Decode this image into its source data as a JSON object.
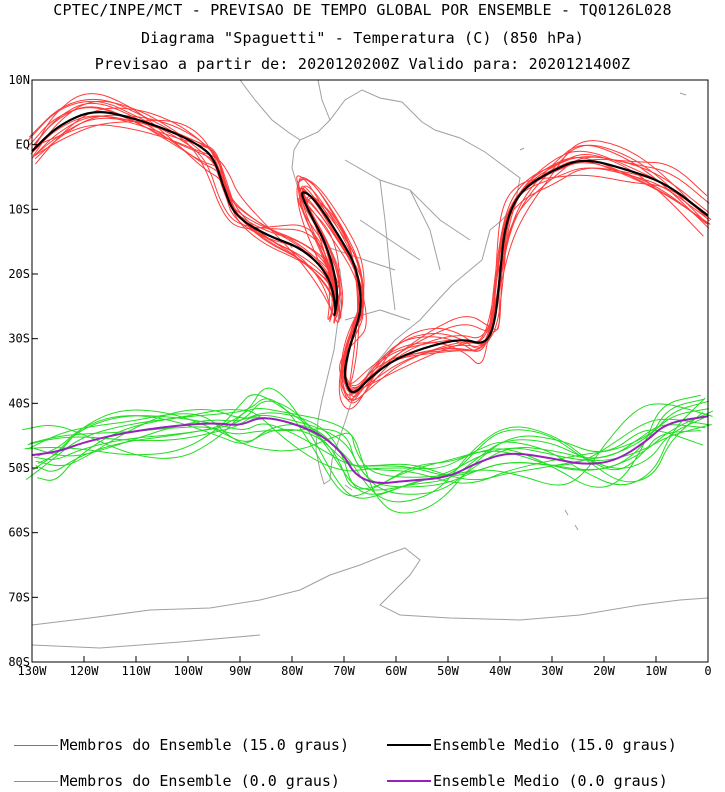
{
  "titles": {
    "line1": "CPTEC/INPE/MCT - PREVISAO DE TEMPO GLOBAL POR ENSEMBLE - TQ0126L028",
    "line2": "Diagrama \"Spaguetti\" - Temperatura (C) (850 hPa)",
    "line3": "Previsao a partir de: 2020120200Z  Valido para: 2020121400Z"
  },
  "axes": {
    "lat_labels": [
      "10N",
      "EQ",
      "10S",
      "20S",
      "30S",
      "40S",
      "50S",
      "60S",
      "70S",
      "80S"
    ],
    "lon_labels": [
      "130W",
      "120W",
      "110W",
      "100W",
      "90W",
      "80W",
      "70W",
      "60W",
      "50W",
      "40W",
      "30W",
      "20W",
      "10W",
      "0"
    ]
  },
  "legend": {
    "members_15_label": "Membros do Ensemble (15.0 graus)",
    "mean_15_label": "Ensemble Medio (15.0 graus)",
    "members_0_label": "Membros do Ensemble (0.0 graus)",
    "mean_0_label": "Ensemble Medio (0.0 graus)"
  },
  "colors": {
    "members_15": "#ff3b3b",
    "mean_15": "#000000",
    "members_0": "#22dd22",
    "mean_0": "#9a1fbf",
    "coast": "#a0a0a0"
  },
  "map_data": {
    "lon_range": [
      -130,
      0
    ],
    "lat_range": [
      -80,
      10
    ],
    "mean_15": [
      [
        -130,
        -1
      ],
      [
        -125,
        3
      ],
      [
        -118,
        5.5
      ],
      [
        -110,
        4
      ],
      [
        -103,
        2
      ],
      [
        -98,
        0
      ],
      [
        -95,
        -2
      ],
      [
        -93,
        -7
      ],
      [
        -91,
        -11
      ],
      [
        -85,
        -14
      ],
      [
        -78,
        -16
      ],
      [
        -73,
        -20
      ],
      [
        -71.5,
        -25
      ],
      [
        -72,
        -27
      ],
      [
        -71,
        -23
      ],
      [
        -73,
        -16
      ],
      [
        -77,
        -10
      ],
      [
        -78.5,
        -7
      ],
      [
        -76,
        -8
      ],
      [
        -71,
        -14
      ],
      [
        -67.5,
        -19
      ],
      [
        -66.5,
        -25
      ],
      [
        -68,
        -29
      ],
      [
        -69.5,
        -33
      ],
      [
        -70,
        -36
      ],
      [
        -68.5,
        -39
      ],
      [
        -65,
        -36
      ],
      [
        -60,
        -33
      ],
      [
        -53,
        -31
      ],
      [
        -47,
        -30
      ],
      [
        -43,
        -31
      ],
      [
        -41,
        -28
      ],
      [
        -40,
        -20
      ],
      [
        -39,
        -12
      ],
      [
        -36,
        -7
      ],
      [
        -30,
        -4
      ],
      [
        -24,
        -2
      ],
      [
        -15,
        -4
      ],
      [
        -8,
        -6
      ],
      [
        0,
        -11
      ]
    ],
    "mean_0": [
      [
        -130,
        -48
      ],
      [
        -125,
        -47.5
      ],
      [
        -120,
        -46
      ],
      [
        -112,
        -44.5
      ],
      [
        -103,
        -43.5
      ],
      [
        -95,
        -43
      ],
      [
        -90,
        -43.5
      ],
      [
        -86,
        -42
      ],
      [
        -80,
        -43
      ],
      [
        -74,
        -45
      ],
      [
        -70,
        -48
      ],
      [
        -68,
        -51
      ],
      [
        -64,
        -52.5
      ],
      [
        -58,
        -52
      ],
      [
        -50,
        -51.5
      ],
      [
        -44,
        -49
      ],
      [
        -38,
        -47.5
      ],
      [
        -30,
        -48.5
      ],
      [
        -24,
        -49.5
      ],
      [
        -18,
        -49
      ],
      [
        -12,
        -46
      ],
      [
        -8,
        -43
      ],
      [
        0,
        -42
      ]
    ],
    "members_15_count": 14,
    "members_0_count": 14
  }
}
